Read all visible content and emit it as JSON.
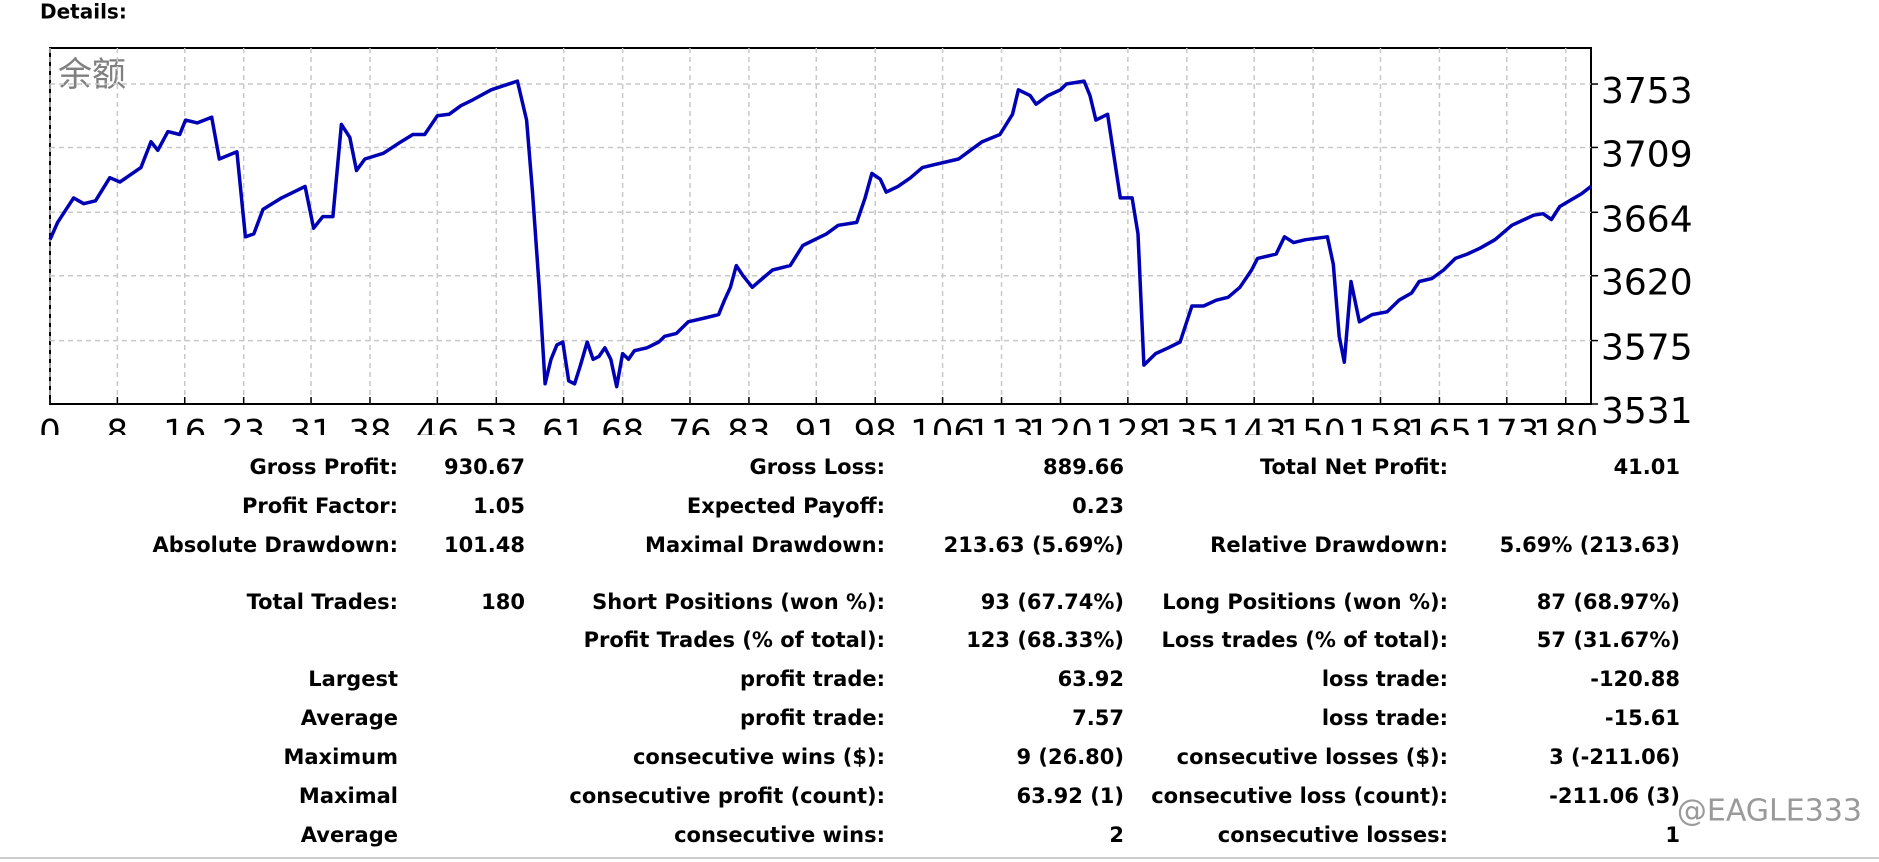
{
  "header": {
    "title": "Details:"
  },
  "chart_data": {
    "type": "line",
    "series_label": "余额",
    "color": "#0000b4",
    "grid": true,
    "xlim": [
      0,
      183
    ],
    "ylim": [
      3531,
      3778
    ],
    "xticks": [
      0,
      8,
      16,
      23,
      31,
      38,
      46,
      53,
      61,
      68,
      76,
      83,
      91,
      98,
      106,
      113,
      120,
      128,
      135,
      143,
      150,
      158,
      165,
      173,
      180
    ],
    "yticks": [
      3531,
      3575,
      3620,
      3664,
      3709,
      3753
    ],
    "x": [
      0,
      0.9,
      2.8,
      4.0,
      5.4,
      7.1,
      8.3,
      10.8,
      12.0,
      12.8,
      14.0,
      15.4,
      16.1,
      17.5,
      19.2,
      20.1,
      22.2,
      23.2,
      24.2,
      25.3,
      27.5,
      30.3,
      31.3,
      32.4,
      33.6,
      34.6,
      35.6,
      36.4,
      37.4,
      39.6,
      41.7,
      43.1,
      44.5,
      46.0,
      47.4,
      48.8,
      50.2,
      52.4,
      55.5,
      56.6,
      57.3,
      58.1,
      58.8,
      59.5,
      60.2,
      60.9,
      61.6,
      62.3,
      63.0,
      63.8,
      64.5,
      65.2,
      65.9,
      66.6,
      67.3,
      68.0,
      68.7,
      69.4,
      70.9,
      72.3,
      73.0,
      74.4,
      75.8,
      78.0,
      79.4,
      80.1,
      80.8,
      81.5,
      82.3,
      83.4,
      84.4,
      85.8,
      87.9,
      89.4,
      90.8,
      92.2,
      93.6,
      95.8,
      96.8,
      97.6,
      98.6,
      99.3,
      100.7,
      102.2,
      103.6,
      105.0,
      107.9,
      109.3,
      110.7,
      112.8,
      114.3,
      115.0,
      116.4,
      117.1,
      118.5,
      120.0,
      120.7,
      122.8,
      123.5,
      124.2,
      125.6,
      127.1,
      128.5,
      129.2,
      129.9,
      131.3,
      132.8,
      134.2,
      135.6,
      137.0,
      138.5,
      139.9,
      141.3,
      142.7,
      143.4,
      145.6,
      146.6,
      147.7,
      149.1,
      151.7,
      152.4,
      153.1,
      153.7,
      154.5,
      155.5,
      157.0,
      158.8,
      160.2,
      161.7,
      162.6,
      164.1,
      165.5,
      166.9,
      168.3,
      169.8,
      171.6,
      173.6,
      176.2,
      177.3,
      178.3,
      179.3,
      181.9,
      183.0
    ],
    "values": [
      3645,
      3657,
      3674,
      3670,
      3672,
      3688,
      3685,
      3695,
      3713,
      3707,
      3720,
      3718,
      3728,
      3726,
      3730,
      3701,
      3706,
      3647,
      3649,
      3666,
      3674,
      3682,
      3653,
      3661,
      3661,
      3725,
      3716,
      3693,
      3701,
      3705,
      3713,
      3718,
      3718,
      3731,
      3732,
      3738,
      3742,
      3749,
      3755,
      3728,
      3678,
      3612,
      3545,
      3562,
      3572,
      3574,
      3547,
      3545,
      3558,
      3574,
      3562,
      3564,
      3570,
      3562,
      3543,
      3566,
      3562,
      3568,
      3570,
      3574,
      3578,
      3580,
      3588,
      3591,
      3593,
      3603,
      3612,
      3627,
      3620,
      3612,
      3617,
      3624,
      3627,
      3641,
      3645,
      3649,
      3655,
      3657,
      3674,
      3691,
      3687,
      3678,
      3682,
      3688,
      3695,
      3697,
      3701,
      3707,
      3713,
      3718,
      3732,
      3749,
      3745,
      3739,
      3745,
      3749,
      3753,
      3755,
      3745,
      3728,
      3732,
      3674,
      3674,
      3649,
      3558,
      3566,
      3570,
      3574,
      3599,
      3599,
      3603,
      3605,
      3612,
      3624,
      3632,
      3635,
      3647,
      3643,
      3645,
      3647,
      3628,
      3578,
      3560,
      3616,
      3588,
      3593,
      3595,
      3603,
      3608,
      3616,
      3618,
      3624,
      3632,
      3635,
      3639,
      3645,
      3655,
      3662,
      3663,
      3659,
      3668,
      3677,
      3682
    ]
  },
  "table": {
    "rows": [
      [
        "Gross Profit:",
        "930.67",
        "Gross Loss:",
        "889.66",
        "Total Net Profit:",
        "41.01"
      ],
      [
        "Profit Factor:",
        "1.05",
        "Expected Payoff:",
        "0.23",
        null,
        null
      ],
      [
        "Absolute Drawdown:",
        "101.48",
        "Maximal Drawdown:",
        "213.63 (5.69%)",
        "Relative Drawdown:",
        "5.69% (213.63)"
      ],
      [
        "Total Trades:",
        "180",
        "Short Positions (won %):",
        "93 (67.74%)",
        "Long Positions (won %):",
        "87 (68.97%)"
      ],
      [
        null,
        null,
        "Profit Trades (% of total):",
        "123 (68.33%)",
        "Loss trades (% of total):",
        "57 (31.67%)"
      ],
      [
        "Largest",
        null,
        "profit trade:",
        "63.92",
        "loss trade:",
        "-120.88"
      ],
      [
        "Average",
        null,
        "profit trade:",
        "7.57",
        "loss trade:",
        "-15.61"
      ],
      [
        "Maximum",
        null,
        "consecutive wins ($):",
        "9 (26.80)",
        "consecutive losses ($):",
        "3 (-211.06)"
      ],
      [
        "Maximal",
        null,
        "consecutive profit (count):",
        "63.92 (1)",
        "consecutive loss (count):",
        "-211.06 (3)"
      ],
      [
        "Average",
        null,
        "consecutive wins:",
        "2",
        "consecutive losses:",
        "1"
      ]
    ]
  },
  "watermark": "@EAGLE333"
}
